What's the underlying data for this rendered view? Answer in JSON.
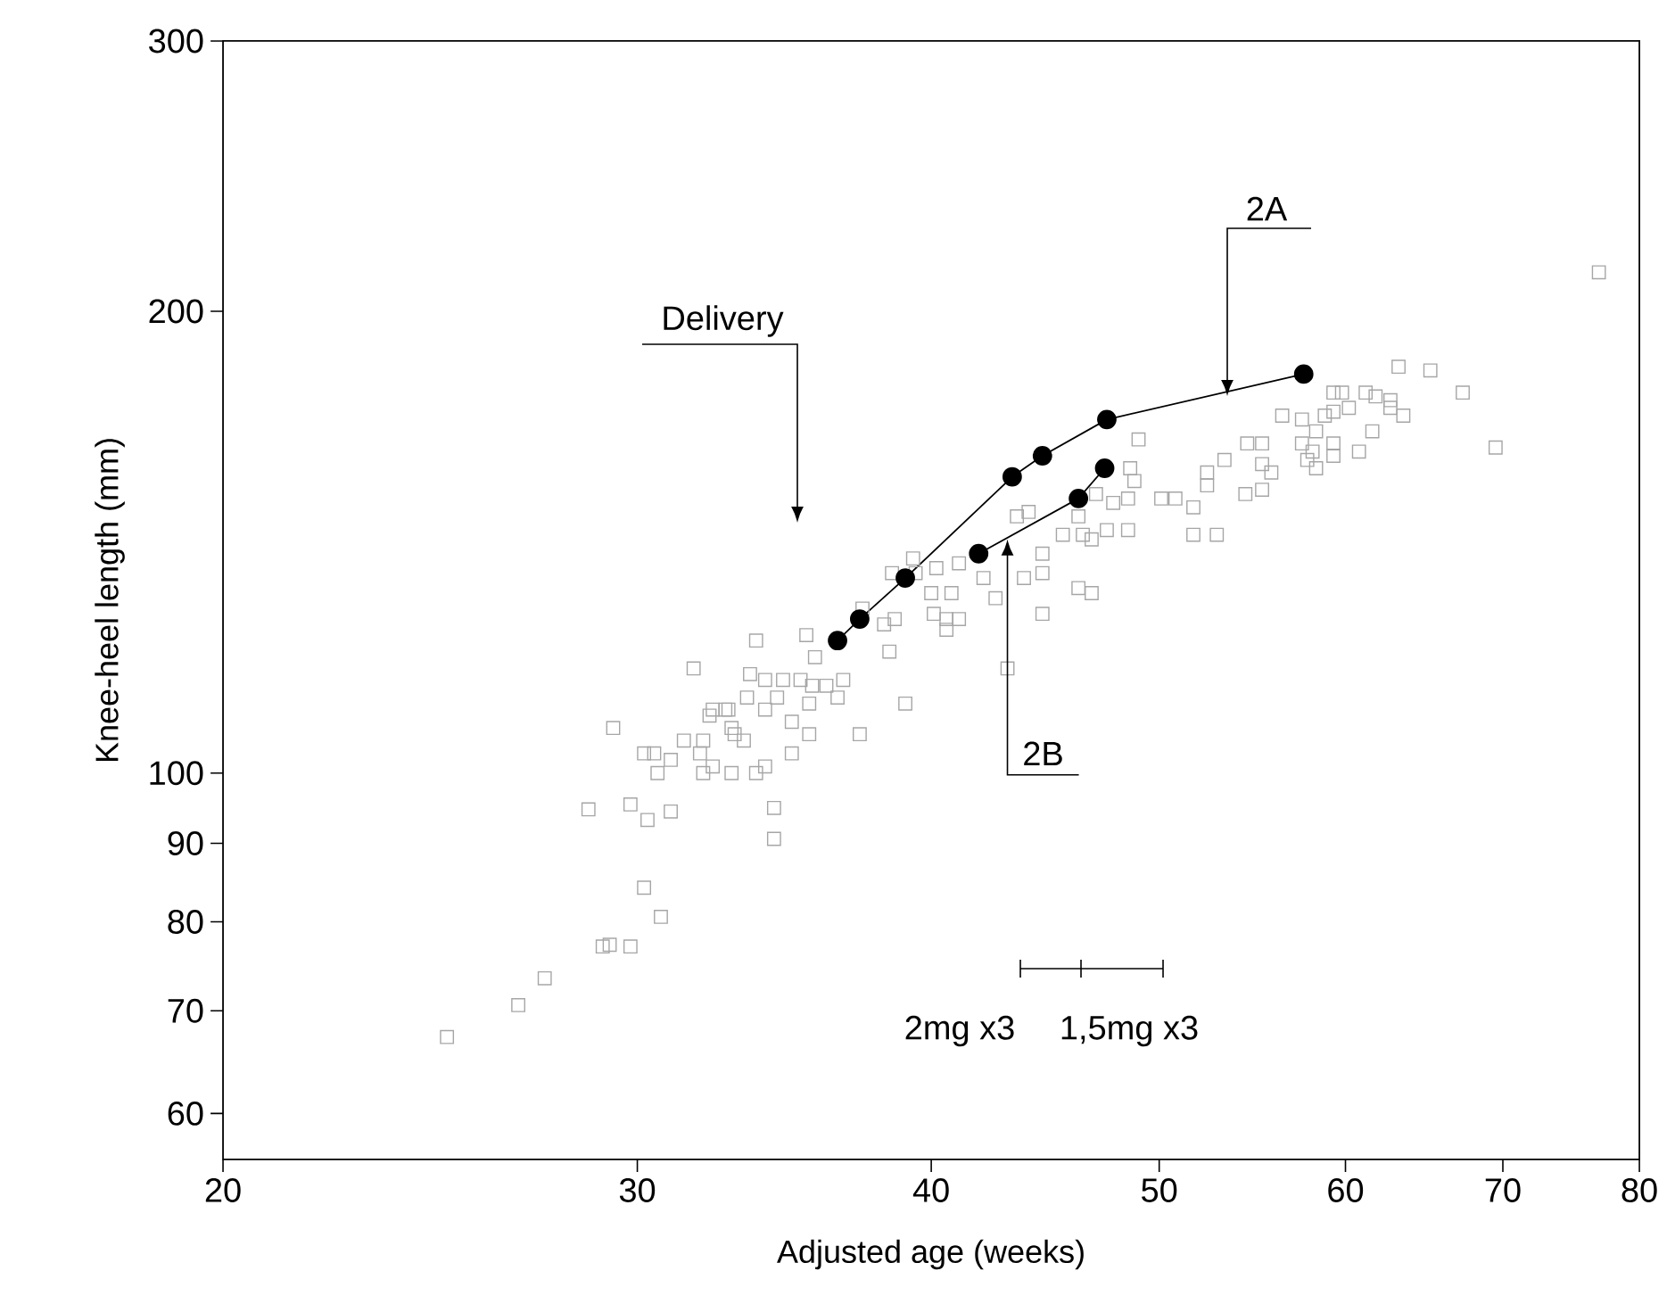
{
  "chart_data": {
    "type": "scatter",
    "xlabel": "Adjusted age (weeks)",
    "ylabel": "Knee-heel length (mm)",
    "log": "xy",
    "xlim": [
      20,
      80
    ],
    "ylim": [
      56,
      300
    ],
    "xticks": [
      20,
      30,
      40,
      50,
      60,
      70,
      80
    ],
    "yticks": [
      60,
      70,
      80,
      90,
      100,
      200,
      300
    ],
    "series": [
      {
        "type": "scatter",
        "marker": "square",
        "color": "#a6a6a6",
        "x": [
          31.7,
          29.3,
          32.2,
          32.7,
          32.9,
          31.4,
          32.0,
          31.9,
          30.2,
          30.5,
          30.6,
          31.0,
          32.0,
          32.3,
          32.9,
          28.6,
          29.8,
          30.3,
          31.0,
          30.2,
          30.7,
          29.0,
          29.2,
          29.8,
          27.4,
          26.7,
          24.9,
          33.7,
          35.4,
          35.7,
          33.5,
          34.0,
          34.6,
          35.2,
          35.6,
          36.1,
          36.7,
          33.4,
          34.4,
          35.5,
          36.5,
          39.0,
          32.3,
          32.8,
          34.0,
          34.9,
          33.0,
          33.3,
          35.5,
          37.3,
          34.9,
          33.7,
          34.0,
          34.3,
          34.3,
          37.4,
          38.2,
          38.6,
          38.4,
          38.5,
          39.3,
          39.4,
          40.2,
          40.0,
          40.8,
          40.1,
          40.6,
          41.1,
          40.6,
          41.1,
          42.6,
          43.1,
          42.1,
          43.5,
          44.0,
          44.6,
          44.6,
          43.8,
          44.6,
          45.5,
          46.4,
          46.8,
          46.2,
          47.0,
          47.8,
          47.5,
          48.5,
          48.5,
          48.6,
          48.8,
          49.0,
          46.2,
          46.8,
          50.1,
          50.8,
          51.7,
          52.4,
          53.3,
          51.7,
          52.9,
          52.4,
          76.9,
          63.2,
          65.2,
          67.3,
          59.3,
          59.8,
          61.2,
          61.8,
          62.7,
          62.7,
          63.5,
          60.2,
          56.4,
          57.5,
          58.8,
          59.3,
          58.3,
          61.6,
          60.8,
          59.3,
          59.3,
          57.5,
          58.1,
          57.8,
          58.3,
          55.3,
          54.5,
          55.3,
          55.8,
          54.4,
          55.3,
          69.5
        ],
        "values": [
          117,
          107,
          109,
          110,
          107,
          105,
          105,
          103,
          103,
          103,
          100,
          102,
          100,
          101,
          100,
          94.7,
          95.4,
          93.2,
          94.4,
          84.2,
          80.6,
          77.1,
          77.3,
          77.1,
          73.5,
          70.6,
          67.3,
          122,
          123,
          119,
          116,
          115,
          115,
          115,
          114,
          114,
          115,
          112,
          112,
          111,
          112,
          111,
          110,
          110,
          110,
          108,
          106,
          105,
          106,
          106,
          103,
          100,
          101,
          94.9,
          90.6,
          128,
          125,
          126,
          120,
          135,
          138,
          135,
          136,
          131,
          131,
          127,
          126,
          126,
          124,
          137,
          130,
          117,
          134,
          147,
          148,
          139,
          135,
          134,
          127,
          143,
          143,
          142,
          147,
          152,
          150,
          144,
          144,
          151,
          158,
          155,
          165,
          132,
          131,
          151,
          151,
          149,
          157,
          160,
          143,
          143,
          154,
          212,
          184,
          183,
          177,
          177,
          177,
          177,
          176,
          175,
          173,
          171,
          173,
          171,
          170,
          171,
          172,
          167,
          167,
          162,
          164,
          161,
          164,
          162,
          160,
          158,
          164,
          164,
          159,
          157,
          152,
          153,
          163
        ]
      },
      {
        "type": "line",
        "marker": "circle",
        "color": "#000000",
        "x": [
          36.5,
          37.3,
          39.0,
          43.3,
          44.6,
          47.5,
          57.6
        ],
        "values": [
          122,
          126,
          134,
          156,
          161,
          170,
          182
        ]
      },
      {
        "type": "line",
        "marker": "circle",
        "color": "#000000",
        "x": [
          41.9,
          46.2,
          47.4
        ],
        "values": [
          139,
          151,
          158
        ]
      }
    ],
    "annotations": [
      "Delivery",
      "2A",
      {
        "text": "2B",
        "x": 43.1,
        "y": 142
      },
      "2mg x3",
      "1,5mg x3"
    ]
  }
}
